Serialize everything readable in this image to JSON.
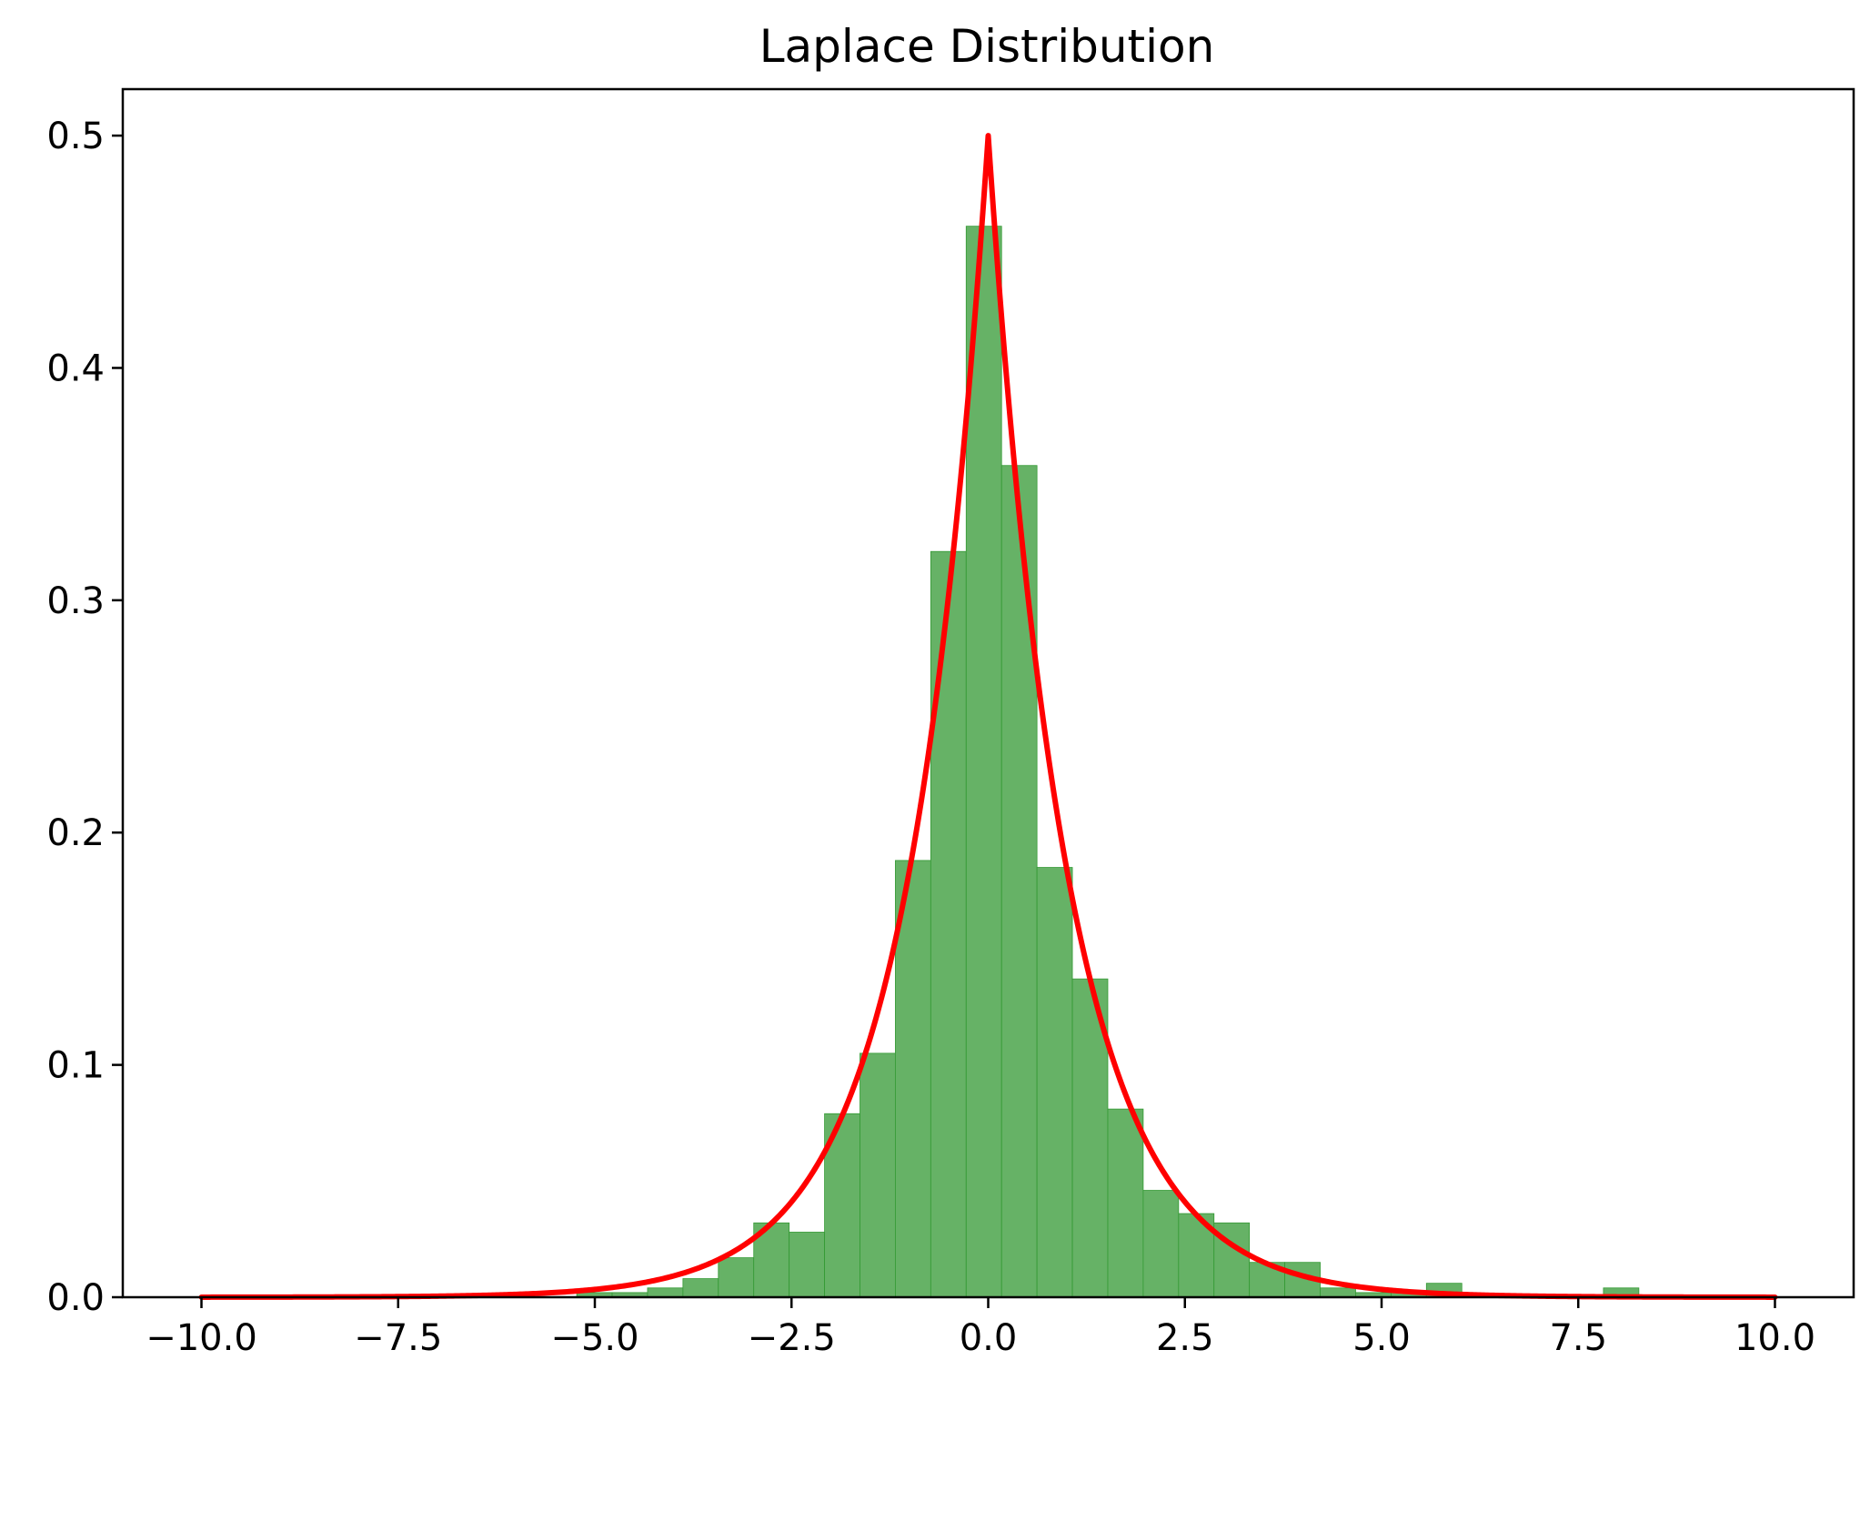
{
  "chart_data": {
    "type": "bar",
    "title": "Laplace Distribution",
    "xlabel": "",
    "ylabel": "",
    "xlim": [
      -11,
      11
    ],
    "ylim": [
      0,
      0.52
    ],
    "xticks": [
      -10,
      -7.5,
      -5,
      -2.5,
      0,
      2.5,
      5,
      7.5,
      10
    ],
    "xtick_labels": [
      "−10.0",
      "−7.5",
      "−5.0",
      "−2.5",
      "0.0",
      "2.5",
      "5.0",
      "7.5",
      "10.0"
    ],
    "yticks": [
      0,
      0.1,
      0.2,
      0.3,
      0.4,
      0.5
    ],
    "ytick_labels": [
      "0.0",
      "0.1",
      "0.2",
      "0.3",
      "0.4",
      "0.5"
    ],
    "grid": false,
    "histogram": {
      "color": "#66b266",
      "edge_color": "#339933",
      "bin_edges": [
        -6.13,
        -5.68,
        -5.23,
        -4.78,
        -4.33,
        -3.88,
        -3.43,
        -2.98,
        -2.53,
        -2.08,
        -1.63,
        -1.18,
        -0.73,
        -0.28,
        0.17,
        0.62,
        1.07,
        1.52,
        1.97,
        2.42,
        2.87,
        3.32,
        3.77,
        4.22,
        4.67,
        5.12,
        5.57,
        6.02,
        6.47,
        6.92,
        7.37,
        7.82,
        8.27
      ],
      "densities": [
        0.0,
        0.0,
        0.002,
        0.002,
        0.004,
        0.008,
        0.017,
        0.032,
        0.028,
        0.079,
        0.105,
        0.188,
        0.321,
        0.461,
        0.358,
        0.185,
        0.137,
        0.081,
        0.046,
        0.036,
        0.032,
        0.015,
        0.015,
        0.004,
        0.002,
        0.002,
        0.006,
        0.0,
        0.0,
        0.0,
        0.0,
        0.004
      ]
    },
    "pdf_curve": {
      "color": "#ff0000",
      "function": "laplace",
      "loc": 0,
      "scale": 1,
      "x_range": [
        -10,
        10
      ],
      "peak": 0.5
    }
  }
}
